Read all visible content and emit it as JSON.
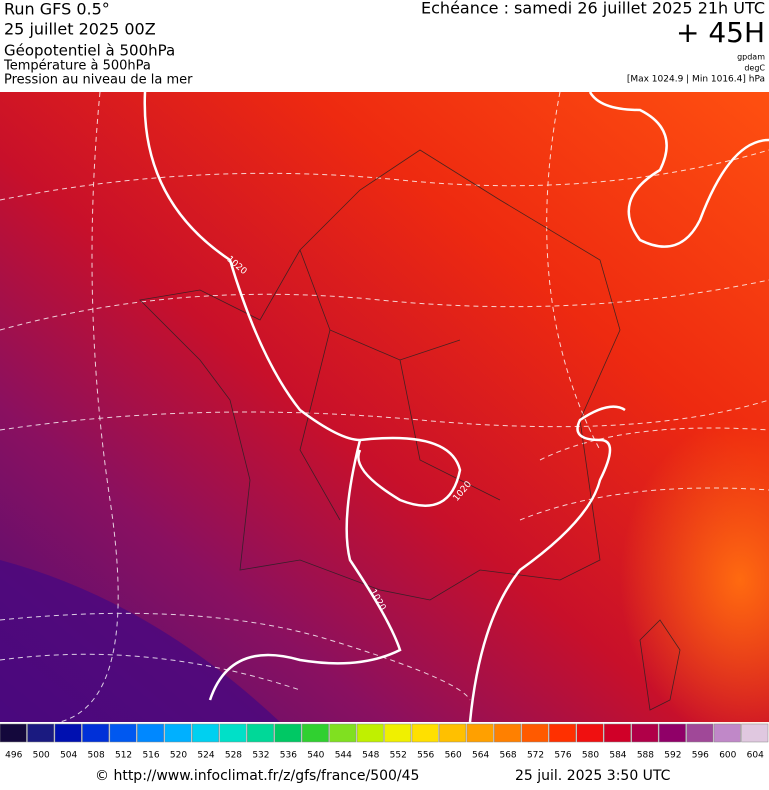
{
  "header": {
    "run": "Run GFS 0.5°",
    "run_date": "25 juillet 2025 00Z",
    "field1": "Géopotentiel à 500hPa",
    "field2": "Température à 500hPa",
    "field3": "Pression au niveau de la mer",
    "valid": "Echéance : samedi 26 juillet 2025 21h UTC",
    "lead": "+ 45H",
    "unit1": "gpdam",
    "unit2": "degC",
    "pressure_range": "[Max 1024.9 | Min 1016.4] hPa"
  },
  "map": {
    "contour_labels": [
      "1020",
      "1020",
      "1020"
    ]
  },
  "colorbar": {
    "values": [
      496,
      500,
      504,
      508,
      512,
      516,
      520,
      524,
      528,
      532,
      536,
      540,
      544,
      548,
      552,
      556,
      560,
      564,
      568,
      572,
      576,
      580,
      584,
      588,
      592,
      596,
      600,
      604
    ],
    "colors": [
      "#14083c",
      "#1a1a80",
      "#0010b0",
      "#0030d8",
      "#0058f0",
      "#0088ff",
      "#00b0ff",
      "#00d0f0",
      "#00e0c8",
      "#00d898",
      "#00c864",
      "#30d030",
      "#80e020",
      "#c0f000",
      "#f0f000",
      "#ffe000",
      "#ffc000",
      "#ffa000",
      "#ff8000",
      "#ff5a00",
      "#ff3000",
      "#f01010",
      "#d00028",
      "#b00048",
      "#900068",
      "#a04898",
      "#c088c8",
      "#e0c8e0"
    ]
  },
  "footer": {
    "source": "© http://www.infoclimat.fr/z/gfs/france/500/45",
    "generated": "25 juil. 2025  3:50 UTC"
  }
}
